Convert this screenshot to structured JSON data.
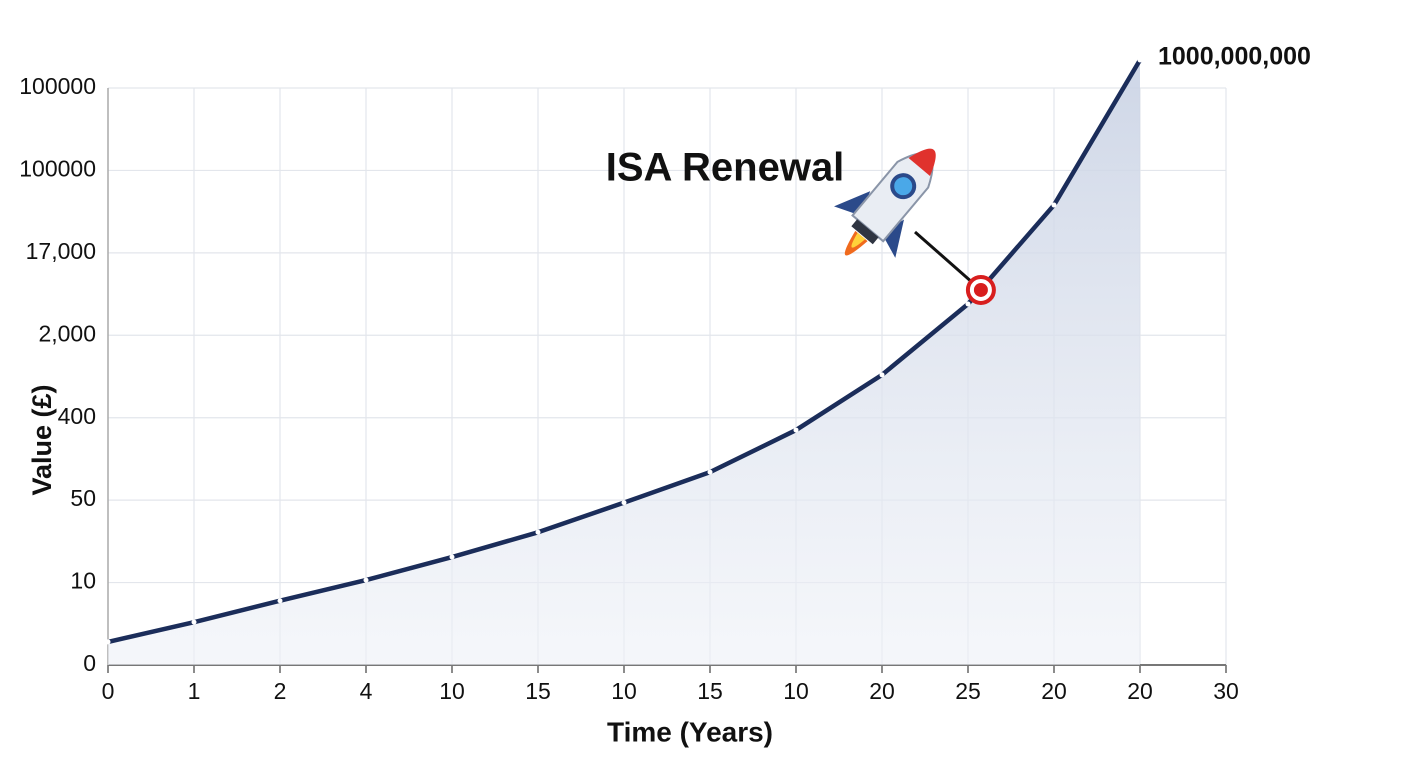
{
  "chart_data": {
    "type": "line",
    "x_label": "Time (Years)",
    "y_label": "Value (£)",
    "categories": [
      "0",
      "1",
      "2",
      "4",
      "10",
      "15",
      "10",
      "15",
      "10",
      "20",
      "25",
      "20",
      "20",
      "30"
    ],
    "y_categories": [
      "0",
      "10",
      "50",
      "400",
      "2,000",
      "17,000",
      "100000",
      "100000"
    ],
    "series": [
      {
        "name": "Value",
        "color": "#1b2d5a",
        "values": [
          0.28,
          0.52,
          0.78,
          1.03,
          1.31,
          1.61,
          1.97,
          2.34,
          2.85,
          3.52,
          4.38,
          5.58,
          7.34,
          null
        ]
      }
    ],
    "end_label": "1000,000,000",
    "annotation": {
      "text": "ISA Renewal",
      "x": 10.15,
      "y": 4.55,
      "color": "#d81e1e"
    },
    "grid": true
  }
}
